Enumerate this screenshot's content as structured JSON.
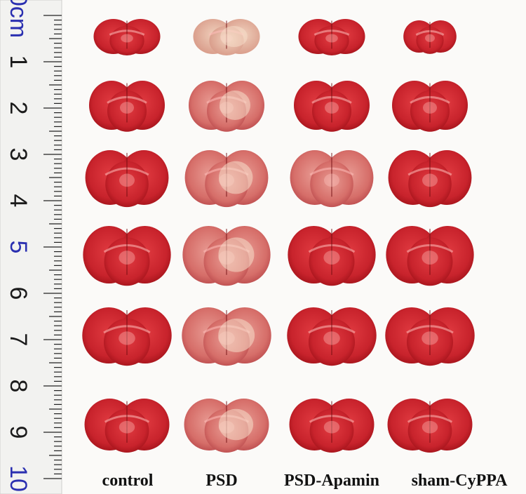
{
  "ruler": {
    "labels": [
      "0cm",
      "1",
      "2",
      "3",
      "4",
      "5",
      "6",
      "7",
      "8",
      "9",
      "10"
    ],
    "highlight": [
      "0cm",
      "5",
      "10"
    ]
  },
  "columns": [
    {
      "label": "control"
    },
    {
      "label": "PSD"
    },
    {
      "label": "PSD-Apamin"
    },
    {
      "label": "sham-CyPPA"
    }
  ],
  "rows": 6,
  "colors": {
    "tissue_red": "#c8232c",
    "tissue_dark": "#9e1118",
    "pale_infarct": "#e8b7a6",
    "ruler_blue": "#2a2fb0"
  }
}
